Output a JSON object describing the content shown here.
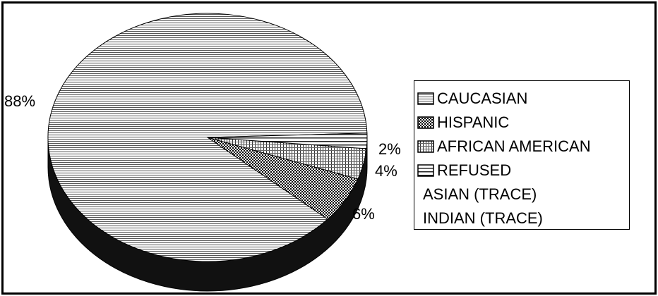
{
  "chart_data": {
    "type": "pie",
    "title": "",
    "slices": [
      {
        "name": "CAUCASIAN",
        "value": 88,
        "label": "88%",
        "pattern": "horizontal-lines"
      },
      {
        "name": "HISPANIC",
        "value": 6,
        "label": "6%",
        "pattern": "checker"
      },
      {
        "name": "AFRICAN AMERICAN",
        "value": 4,
        "label": "4%",
        "pattern": "grid"
      },
      {
        "name": "REFUSED",
        "value": 2,
        "label": "2%",
        "pattern": "wide-horizontal-lines"
      },
      {
        "name": "ASIAN (TRACE)",
        "value": 0,
        "label": "",
        "pattern": "none"
      },
      {
        "name": "INDIAN (TRACE)",
        "value": 0,
        "label": "",
        "pattern": "none"
      }
    ],
    "style": "3d-pie",
    "legend_position": "right",
    "colors": {
      "fill": "#ffffff",
      "ink": "#000000",
      "depth": "#111111"
    }
  }
}
